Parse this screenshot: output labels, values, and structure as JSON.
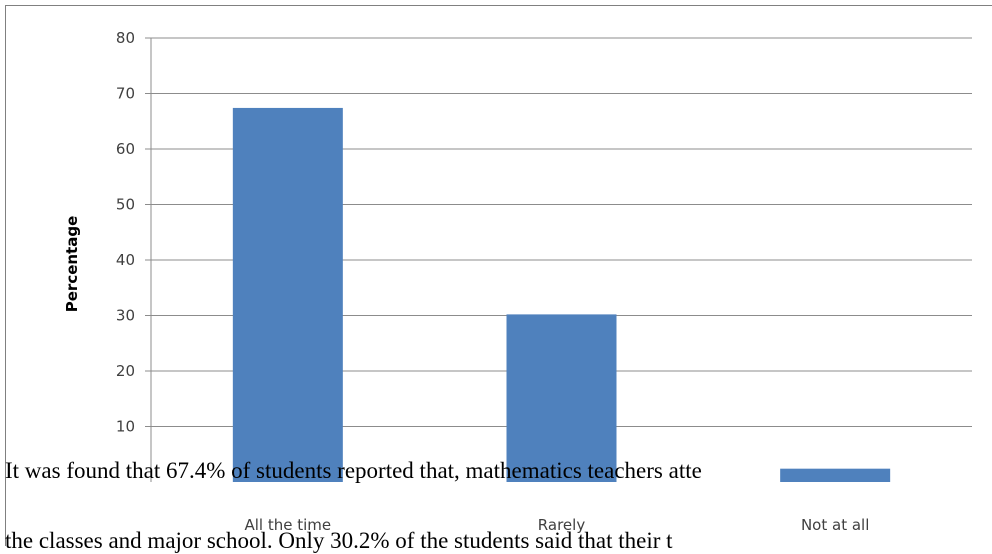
{
  "chart_data": {
    "type": "bar",
    "categories": [
      "All the time",
      "Rarely",
      "Not at all"
    ],
    "values": [
      67.4,
      30.2,
      2.4
    ],
    "ylabel": "Percentage",
    "ylim": [
      0,
      80
    ],
    "yticks": [
      10,
      20,
      30,
      40,
      50,
      60,
      70,
      80
    ],
    "grid": true,
    "colors": {
      "bar": "#4F81BD",
      "grid": "#8c8c8c",
      "axis": "#8c8c8c"
    }
  },
  "body_text": {
    "line1": "It was found that 67.4% of students reported that, mathematics teachers atte",
    "line2": "the classes and major school. Only 30.2% of the students said that their t"
  }
}
